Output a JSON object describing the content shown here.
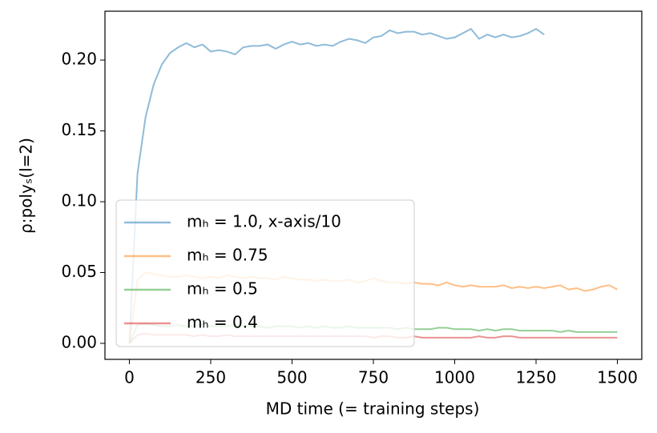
{
  "chart_data": {
    "type": "line",
    "xlabel": "MD time (= training steps)",
    "ylabel": "ρ:polyₛ(l=2)",
    "x": [
      0,
      25,
      50,
      75,
      100,
      125,
      150,
      175,
      200,
      225,
      250,
      275,
      300,
      325,
      350,
      375,
      400,
      425,
      450,
      475,
      500,
      525,
      550,
      575,
      600,
      625,
      650,
      675,
      700,
      725,
      750,
      775,
      800,
      825,
      850,
      875,
      900,
      925,
      950,
      975,
      1000,
      1025,
      1050,
      1075,
      1100,
      1125,
      1150,
      1175,
      1200,
      1225,
      1250,
      1275,
      1300,
      1325,
      1350,
      1375,
      1400,
      1425,
      1450,
      1475,
      1500
    ],
    "series": [
      {
        "name": "mₕ = 1.0, x-axis/10",
        "color": "#1f77b4",
        "values": [
          0,
          0.12,
          0.16,
          0.183,
          0.197,
          0.205,
          0.209,
          0.212,
          0.209,
          0.211,
          0.206,
          0.207,
          0.206,
          0.204,
          0.209,
          0.21,
          0.21,
          0.211,
          0.208,
          0.211,
          0.213,
          0.211,
          0.212,
          0.21,
          0.211,
          0.21,
          0.213,
          0.215,
          0.214,
          0.212,
          0.216,
          0.217,
          0.221,
          0.219,
          0.22,
          0.22,
          0.218,
          0.219,
          0.217,
          0.215,
          0.216,
          0.219,
          0.222,
          0.215,
          0.218,
          0.216,
          0.218,
          0.216,
          0.217,
          0.219,
          0.222,
          0.218,
          null,
          null,
          null,
          null,
          null,
          null,
          null,
          null,
          null
        ]
      },
      {
        "name": "mₕ = 0.75",
        "color": "#ff7f0e",
        "values": [
          0,
          0.045,
          0.05,
          0.049,
          0.048,
          0.047,
          0.047,
          0.048,
          0.047,
          0.046,
          0.047,
          0.046,
          0.048,
          0.047,
          0.046,
          0.047,
          0.046,
          0.046,
          0.045,
          0.047,
          0.046,
          0.045,
          0.045,
          0.044,
          0.045,
          0.044,
          0.044,
          0.045,
          0.043,
          0.044,
          0.046,
          0.044,
          0.043,
          0.043,
          0.042,
          0.043,
          0.042,
          0.042,
          0.041,
          0.043,
          0.041,
          0.04,
          0.041,
          0.04,
          0.04,
          0.04,
          0.041,
          0.039,
          0.04,
          0.039,
          0.04,
          0.039,
          0.04,
          0.041,
          0.038,
          0.039,
          0.037,
          0.038,
          0.04,
          0.041,
          0.038
        ]
      },
      {
        "name": "mₕ = 0.5",
        "color": "#2ca02c",
        "values": [
          0,
          0.013,
          0.014,
          0.013,
          0.012,
          0.012,
          0.013,
          0.012,
          0.012,
          0.013,
          0.012,
          0.012,
          0.012,
          0.013,
          0.012,
          0.012,
          0.012,
          0.011,
          0.012,
          0.012,
          0.012,
          0.011,
          0.012,
          0.011,
          0.012,
          0.011,
          0.011,
          0.012,
          0.011,
          0.011,
          0.011,
          0.011,
          0.011,
          0.01,
          0.011,
          0.01,
          0.01,
          0.01,
          0.011,
          0.011,
          0.01,
          0.01,
          0.01,
          0.009,
          0.01,
          0.009,
          0.01,
          0.01,
          0.009,
          0.009,
          0.009,
          0.009,
          0.009,
          0.008,
          0.009,
          0.008,
          0.008,
          0.008,
          0.008,
          0.008,
          0.008
        ]
      },
      {
        "name": "mₕ = 0.4",
        "color": "#d62728",
        "values": [
          0,
          0.006,
          0.007,
          0.006,
          0.006,
          0.006,
          0.006,
          0.006,
          0.005,
          0.006,
          0.005,
          0.005,
          0.006,
          0.005,
          0.005,
          0.005,
          0.005,
          0.005,
          0.005,
          0.005,
          0.005,
          0.005,
          0.005,
          0.005,
          0.005,
          0.005,
          0.005,
          0.005,
          0.005,
          0.005,
          0.004,
          0.005,
          0.005,
          0.004,
          0.004,
          0.005,
          0.004,
          0.004,
          0.004,
          0.004,
          0.004,
          0.004,
          0.004,
          0.005,
          0.004,
          0.004,
          0.005,
          0.005,
          0.004,
          0.004,
          0.004,
          0.004,
          0.004,
          0.004,
          0.004,
          0.004,
          0.004,
          0.004,
          0.004,
          0.004,
          0.004
        ]
      }
    ],
    "xlim": [
      -75,
      1575
    ],
    "ylim": [
      -0.0113,
      0.2345
    ],
    "xticks": [
      0,
      250,
      500,
      750,
      1000,
      1250,
      1500
    ],
    "yticks": [
      {
        "value": 0,
        "label": "0.00"
      },
      {
        "value": 0.05,
        "label": "0.05"
      },
      {
        "value": 0.1,
        "label": "0.10"
      },
      {
        "value": 0.15,
        "label": "0.15"
      },
      {
        "value": 0.2,
        "label": "0.20"
      }
    ],
    "legend": "lower left"
  }
}
